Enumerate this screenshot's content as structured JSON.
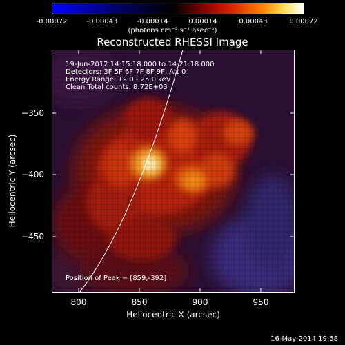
{
  "colorbar": {
    "ticks": [
      "-0.00072",
      "-0.00043",
      "-0.00014",
      "0.00014",
      "0.00043",
      "0.00072"
    ],
    "units": "(photons cm⁻² s⁻¹ asec⁻²)"
  },
  "title": "Reconstructed RHESSI Image",
  "info": {
    "time": "19-Jun-2012 14:15:18.000 to 14:21:18.000",
    "detectors": "Detectors: 3F 5F 6F 7F 8F 9F, Att 0",
    "energy": "Energy Range: 12.0 - 25.0 keV",
    "clean": "Clean     Total counts: 8.72E+03"
  },
  "peak_label": "Position of Peak = [859,-392]",
  "axes": {
    "xlabel": "Heliocentric X (arcsec)",
    "ylabel": "Heliocentric Y (arcsec)",
    "xticks": [
      "800",
      "850",
      "900",
      "950"
    ],
    "yticks": [
      "−350",
      "−400",
      "−450"
    ]
  },
  "datestamp": "16-May-2014 19:58",
  "colors": {
    "low": "#0000ff",
    "mid": "#000000",
    "high": "#ffffff"
  }
}
